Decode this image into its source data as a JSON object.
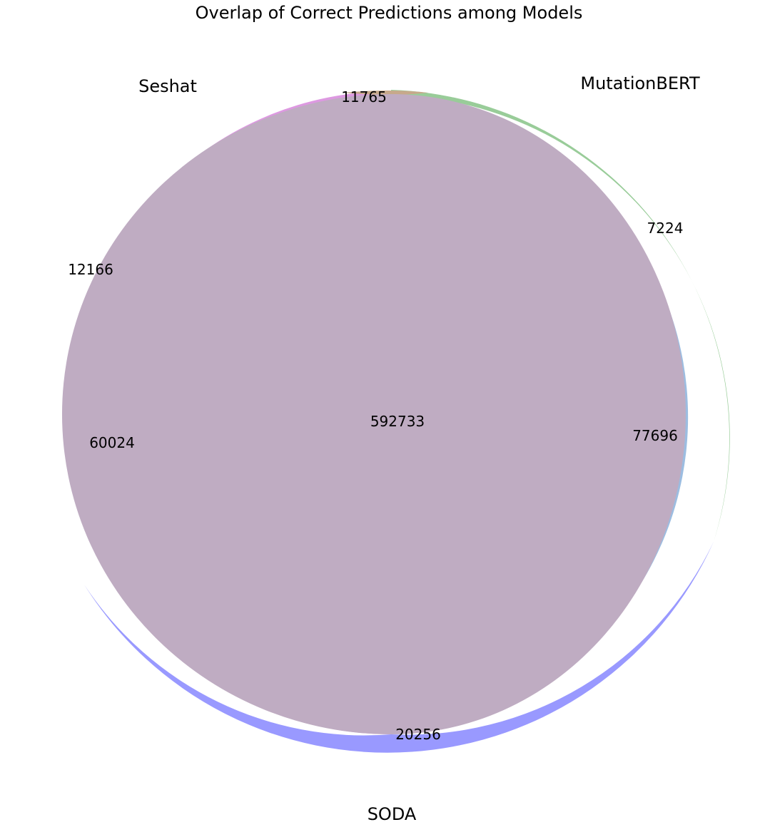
{
  "chart_data": {
    "type": "venn",
    "title": "Overlap of Correct Predictions among Models",
    "sets": [
      {
        "key": "A",
        "name": "Seshat",
        "color": "#ff0000"
      },
      {
        "key": "B",
        "name": "MutationBERT",
        "color": "#008000"
      },
      {
        "key": "C",
        "name": "SODA",
        "color": "#0000ff"
      }
    ],
    "regions": [
      {
        "key": "A_only",
        "sets": [
          "Seshat"
        ],
        "value": 12166
      },
      {
        "key": "B_only",
        "sets": [
          "MutationBERT"
        ],
        "value": 7224
      },
      {
        "key": "AB",
        "sets": [
          "Seshat",
          "MutationBERT"
        ],
        "value": 11765
      },
      {
        "key": "C_only",
        "sets": [
          "SODA"
        ],
        "value": 20256
      },
      {
        "key": "AC",
        "sets": [
          "Seshat",
          "SODA"
        ],
        "value": 60024
      },
      {
        "key": "BC",
        "sets": [
          "MutationBERT",
          "SODA"
        ],
        "value": 77696
      },
      {
        "key": "ABC",
        "sets": [
          "Seshat",
          "MutationBERT",
          "SODA"
        ],
        "value": 592733
      }
    ]
  }
}
